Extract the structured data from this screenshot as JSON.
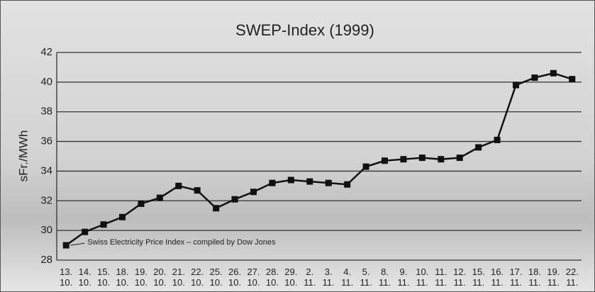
{
  "chart_data": {
    "type": "line",
    "title": "SWEP-Index (1999)",
    "y_label": "sFr./MWh",
    "annotation": "Swiss Electricity Price Index – compiled by Dow Jones",
    "categories": [
      "13.\n10.",
      "14.\n10.",
      "15.\n10.",
      "18.\n10.",
      "19.\n10.",
      "20.\n10.",
      "21.\n10.",
      "22.\n10.",
      "25.\n10.",
      "26.\n10.",
      "27.\n10.",
      "28.\n10.",
      "29.\n10.",
      "2.\n11.",
      "3.\n11.",
      "4.\n11.",
      "5.\n11.",
      "8.\n11.",
      "9.\n11.",
      "10.\n11.",
      "11.\n11.",
      "12.\n11.",
      "15.\n11.",
      "16.\n11.",
      "17.\n11.",
      "18.\n11.",
      "19.\n11.",
      "22.\n11."
    ],
    "values": [
      29.0,
      29.9,
      30.4,
      30.9,
      31.8,
      32.2,
      33.0,
      32.7,
      31.5,
      32.1,
      32.6,
      33.2,
      33.4,
      33.3,
      33.2,
      33.1,
      34.3,
      34.7,
      34.8,
      34.9,
      34.8,
      34.9,
      35.6,
      36.1,
      39.8,
      40.3,
      40.6,
      40.2
    ],
    "color": "#111111",
    "ylim": [
      28,
      42
    ],
    "yticks": [
      28,
      30,
      32,
      34,
      36,
      38,
      40,
      42
    ],
    "grid": true
  }
}
